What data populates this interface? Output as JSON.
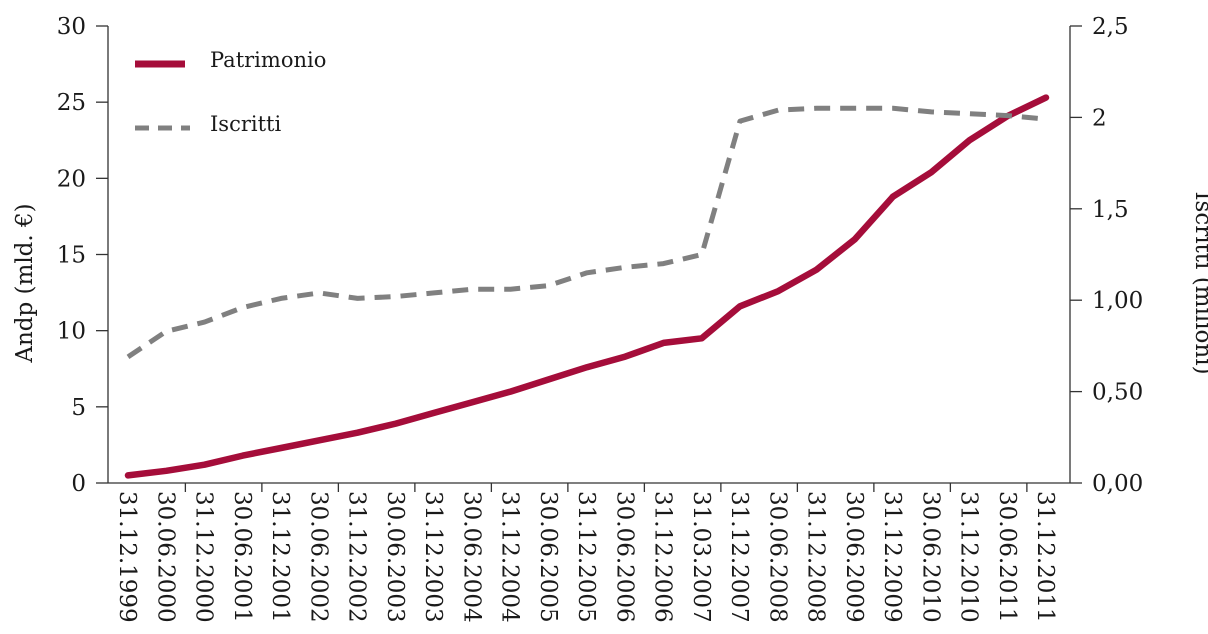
{
  "chart_data": {
    "type": "line",
    "title": "",
    "left_axis": {
      "label": "Andp (mld. €)",
      "ylim": [
        0,
        30
      ],
      "ticks": [
        "0",
        "5",
        "10",
        "15",
        "20",
        "25",
        "30"
      ]
    },
    "right_axis": {
      "label": "Iscritti (milioni)",
      "ylim": [
        0,
        2.5
      ],
      "ticks": [
        "0,00",
        "0,50",
        "1,00",
        "1,5",
        "2",
        "2,5"
      ]
    },
    "x_labels": [
      "31.12.1999",
      "30.06.2000",
      "31.12.2000",
      "30.06.2001",
      "31.12.2001",
      "30.06.2002",
      "31.12.2002",
      "30.06.2003",
      "31.12.2003",
      "30.06.2004",
      "31.12.2004",
      "30.06.2005",
      "31.12.2005",
      "30.06.2006",
      "31.12.2006",
      "31.03.2007",
      "31.12.2007",
      "30.06.2008",
      "31.12.2008",
      "30.06.2009",
      "31.12.2009",
      "30.06.2010",
      "31.12.2010",
      "30.06.2011",
      "31.12.2011"
    ],
    "series": [
      {
        "name": "Patrimonio",
        "axis": "left",
        "color": "#a50d3a",
        "style": "solid",
        "values": [
          0.5,
          0.8,
          1.2,
          1.8,
          2.3,
          2.8,
          3.3,
          3.9,
          4.6,
          5.3,
          6.0,
          6.8,
          7.6,
          8.3,
          9.2,
          9.5,
          11.6,
          12.6,
          14.0,
          16.0,
          18.8,
          20.4,
          22.5,
          24.1,
          25.3
        ]
      },
      {
        "name": "Iscritti",
        "axis": "right",
        "color": "#808080",
        "style": "dashed",
        "values": [
          0.69,
          0.83,
          0.88,
          0.96,
          1.01,
          1.04,
          1.01,
          1.02,
          1.04,
          1.06,
          1.06,
          1.08,
          1.15,
          1.18,
          1.2,
          1.25,
          1.98,
          2.04,
          2.05,
          2.05,
          2.05,
          2.03,
          2.02,
          2.01,
          1.99
        ]
      }
    ],
    "legend_position": "top-left",
    "grid": false
  }
}
